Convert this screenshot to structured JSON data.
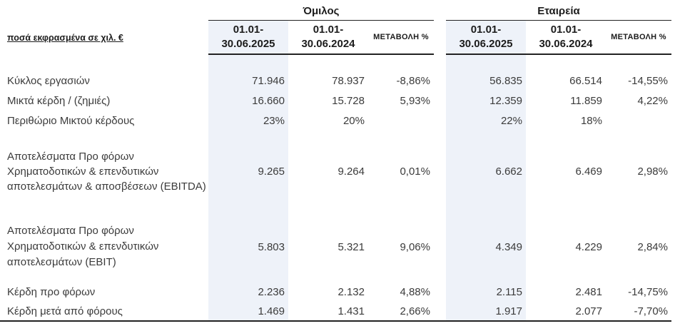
{
  "meta": {
    "unit_label": "ποσά εκφρασμένα σε χιλ. €"
  },
  "sections": [
    {
      "title": "Όμιλος"
    },
    {
      "title": "Εταιρεία"
    }
  ],
  "column_headers": {
    "current_line1": "01.01-",
    "current_line2": "30.06.2025",
    "prior_line1": "01.01-",
    "prior_line2": "30.06.2024",
    "change": "ΜΕΤΑΒΟΛΗ %"
  },
  "colors": {
    "highlight_column": "#eef2f9",
    "rule": "#222222",
    "text": "#3b3b3b"
  },
  "rows": [
    {
      "label": "Κύκλος εργασιών",
      "g2025": "71.946",
      "g2024": "78.937",
      "gchg": "-8,86%",
      "c2025": "56.835",
      "c2024": "66.514",
      "cchg": "-14,55%"
    },
    {
      "label": "Μικτά κέρδη / (ζημιές)",
      "g2025": "16.660",
      "g2024": "15.728",
      "gchg": "5,93%",
      "c2025": "12.359",
      "c2024": "11.859",
      "cchg": "4,22%"
    },
    {
      "label": "Περιθώριο Μικτού κέρδους",
      "g2025": "23%",
      "g2024": "20%",
      "gchg": "",
      "c2025": "22%",
      "c2024": "18%",
      "cchg": ""
    },
    {
      "label": "Αποτελέσματα Προ φόρων Χρηματοδοτικών & επενδυτικών αποτελεσμάτων  & αποσβέσεων (EBITDA)",
      "g2025": "9.265",
      "g2024": "9.264",
      "gchg": "0,01%",
      "c2025": "6.662",
      "c2024": "6.469",
      "cchg": "2,98%"
    },
    {
      "label": "Αποτελέσματα Προ φόρων Χρηματοδοτικών & επενδυτικών αποτελεσμάτων (EBIT)",
      "g2025": "5.803",
      "g2024": "5.321",
      "gchg": "9,06%",
      "c2025": "4.349",
      "c2024": "4.229",
      "cchg": "2,84%"
    },
    {
      "label": "Κέρδη προ φόρων",
      "g2025": "2.236",
      "g2024": "2.132",
      "gchg": "4,88%",
      "c2025": "2.115",
      "c2024": "2.481",
      "cchg": "-14,75%"
    },
    {
      "label": "Κέρδη μετά από φόρους",
      "g2025": "1.469",
      "g2024": "1.431",
      "gchg": "2,66%",
      "c2025": "1.917",
      "c2024": "2.077",
      "cchg": "-7,70%"
    }
  ]
}
